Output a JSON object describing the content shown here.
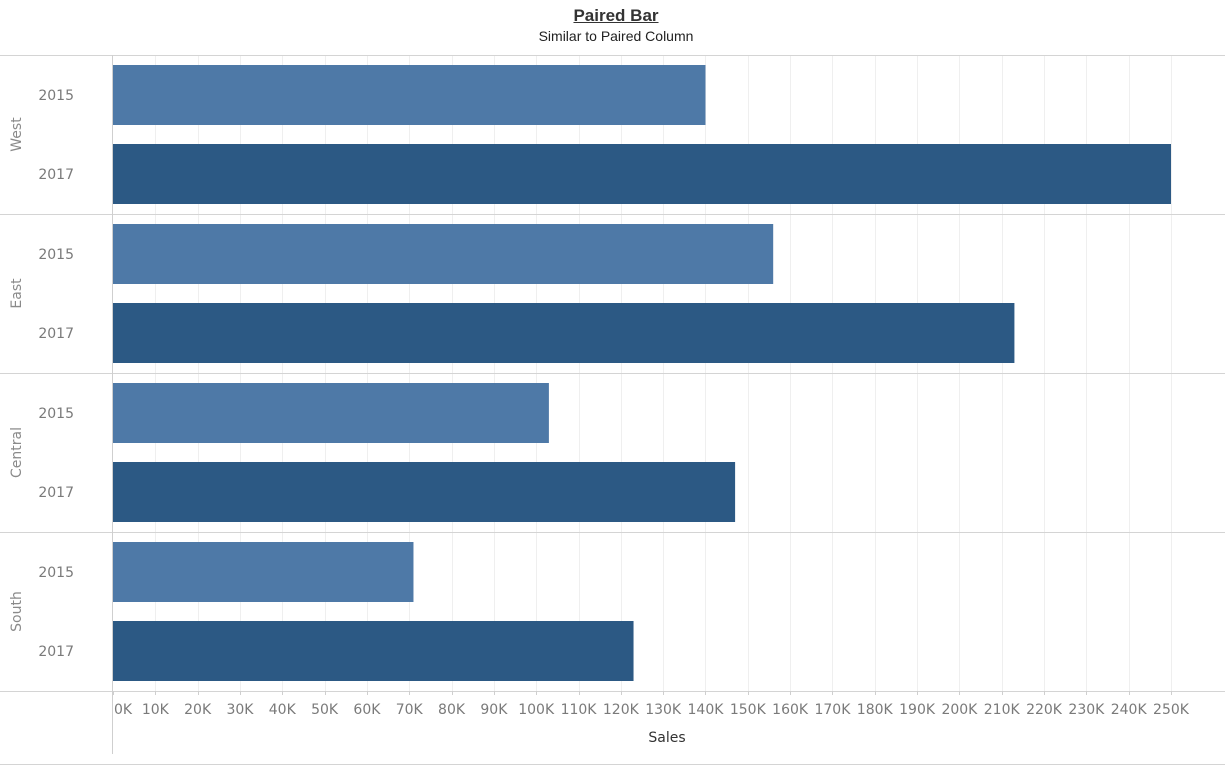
{
  "chart_data": {
    "type": "bar",
    "orientation": "horizontal",
    "title": "Paired Bar",
    "subtitle": "Similar to Paired Column",
    "xlabel": "Sales",
    "ylabel": "",
    "xlim": [
      0,
      260000
    ],
    "x_ticks": [
      0,
      10000,
      20000,
      30000,
      40000,
      50000,
      60000,
      70000,
      80000,
      90000,
      100000,
      110000,
      120000,
      130000,
      140000,
      150000,
      160000,
      170000,
      180000,
      190000,
      200000,
      210000,
      220000,
      230000,
      240000,
      250000
    ],
    "x_tick_labels": [
      "0K",
      "10K",
      "20K",
      "30K",
      "40K",
      "50K",
      "60K",
      "70K",
      "80K",
      "90K",
      "100K",
      "110K",
      "120K",
      "130K",
      "140K",
      "150K",
      "160K",
      "170K",
      "180K",
      "190K",
      "200K",
      "210K",
      "220K",
      "230K",
      "240K",
      "250K"
    ],
    "grid": true,
    "groups": [
      {
        "region": "West",
        "bars": [
          {
            "year": "2015",
            "value": 140000
          },
          {
            "year": "2017",
            "value": 250000
          }
        ]
      },
      {
        "region": "East",
        "bars": [
          {
            "year": "2015",
            "value": 156000
          },
          {
            "year": "2017",
            "value": 213000
          }
        ]
      },
      {
        "region": "Central",
        "bars": [
          {
            "year": "2015",
            "value": 103000
          },
          {
            "year": "2017",
            "value": 147000
          }
        ]
      },
      {
        "region": "South",
        "bars": [
          {
            "year": "2015",
            "value": 71000
          },
          {
            "year": "2017",
            "value": 123000
          }
        ]
      }
    ],
    "colors": {
      "2015": "#4e79a7",
      "2017": "#2c5984"
    }
  }
}
